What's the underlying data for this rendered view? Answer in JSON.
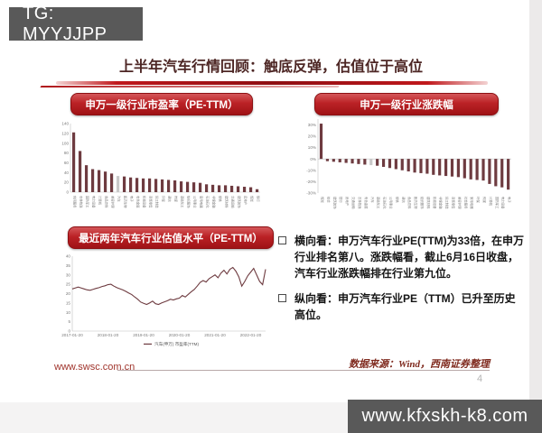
{
  "overlays": {
    "top_left_tag": "TG: MYYJJPP",
    "bottom_right_url": "www.kfxskh-k8.com"
  },
  "slide": {
    "title": "上半年汽车行情回顾：触底反弹，估值位于高位",
    "footer": {
      "website": "www.swsc.com.cn",
      "source": "数据来源：Wind，西南证券整理",
      "page": "4"
    }
  },
  "bullets": [
    {
      "lead": "横向看：",
      "text": "申万汽车行业PE(TTM)为33倍，在申万行业排名第八。涨跌幅看，截止6月16日收盘，汽车行业涨跌幅排在行业第九位。"
    },
    {
      "lead": "纵向看：",
      "text": "申万汽车行业PE（TTM）已升至历史高位。"
    }
  ],
  "colors": {
    "accent_red": "#b0181c",
    "title_color": "#4d2624",
    "bar": "#6e3b40",
    "bar_highlight": "#c9c9c9",
    "line": "#6e3b40",
    "banner_bg": "#595959"
  },
  "chart_data": [
    {
      "type": "bar",
      "title": "申万一级行业市盈率（PE-TTM）",
      "categories": [
        "休闲服务",
        "农林牧渔",
        "国防军工",
        "电力设备",
        "计算机",
        "食品饮料",
        "美容护理",
        "汽车",
        "医药生物",
        "电子",
        "有色金属",
        "机械设备",
        "商贸零售",
        "轻工制造",
        "环保",
        "通信",
        "传媒",
        "基础化工",
        "纺织服饰",
        "公用事业",
        "家用电器",
        "石油石化",
        "非银金融",
        "钢铁",
        "建筑材料",
        "交通运输",
        "建筑装饰",
        "房地产",
        "煤炭",
        "银行"
      ],
      "values": [
        122,
        84,
        55,
        47,
        45,
        42,
        38,
        33,
        32,
        30,
        29,
        28,
        28,
        27,
        26,
        25,
        24,
        22,
        21,
        20,
        19,
        16,
        15,
        14,
        14,
        13,
        12,
        11,
        10,
        6
      ],
      "highlight_category": "汽车",
      "highlight_index": 7,
      "ylim": [
        0,
        140
      ],
      "yticks": [
        140,
        120,
        100,
        80,
        60,
        40,
        20,
        0
      ],
      "tick_suffix": "",
      "grid": false,
      "legend": "none"
    },
    {
      "type": "bar",
      "title": "申万一级行业涨跌幅",
      "categories": [
        "煤炭",
        "综合",
        "建筑装饰",
        "银行",
        "房地产",
        "交通运输",
        "农林牧渔",
        "有色金属",
        "汽车",
        "基础化工",
        "石油石化",
        "公用事业",
        "钢铁",
        "通信",
        "食品饮料",
        "医药生物",
        "纺织服饰",
        "建筑材料",
        "机械设备",
        "非银金融",
        "轻工制造",
        "商贸零售",
        "美容护理",
        "社会服务",
        "家用电器",
        "环保",
        "传媒",
        "计算机",
        "国防军工",
        "电力设备",
        "电子"
      ],
      "values": [
        31,
        -2,
        -2.5,
        -3,
        -3.5,
        -4,
        -4.5,
        -5,
        -5.5,
        -6,
        -7,
        -8,
        -9,
        -10,
        -11,
        -12,
        -12.5,
        -13,
        -14,
        -14.5,
        -15,
        -15.5,
        -16,
        -17,
        -18,
        -18.5,
        -19,
        -22,
        -24,
        -25,
        -27
      ],
      "highlight_category": "汽车",
      "highlight_index": 8,
      "ylim": [
        -30,
        35
      ],
      "yticks": [
        30,
        20,
        10,
        0,
        -10,
        -20,
        -30
      ],
      "tick_suffix": "%",
      "grid": false,
      "legend": "none"
    },
    {
      "type": "line",
      "title": "最近两年汽车行业估值水平（PE-TTM）",
      "series": [
        {
          "name": "汽车(申万) 市盈率(TTM)",
          "values": [
            22.5,
            23,
            23.5,
            23,
            22.5,
            22,
            21.8,
            22.3,
            22.8,
            23.2,
            23.8,
            24.2,
            24.8,
            25,
            24,
            23.2,
            22.6,
            22,
            21.2,
            20.3,
            19.5,
            18.2,
            17,
            15.5,
            14.8,
            14.2,
            15,
            16,
            14.6,
            14.2,
            15,
            15.6,
            16.2,
            17,
            16.6,
            17.2,
            17.6,
            19,
            18.2,
            19.6,
            21,
            22.2,
            24,
            26,
            27,
            26.2,
            28,
            29,
            30,
            28.5,
            31,
            32.5,
            30.5,
            33,
            34,
            32,
            29,
            24,
            26.5,
            29.5,
            31.5,
            33.5,
            30,
            26.5,
            24.8,
            33
          ]
        }
      ],
      "x_tick_labels": [
        "2017-01-20",
        "2018-01-20",
        "2019-01-20",
        "2020-01-20",
        "2021-01-20",
        "2022-01-20"
      ],
      "x_tick_indices": [
        0,
        12,
        24,
        36,
        48,
        60
      ],
      "ylim": [
        0,
        40
      ],
      "yticks": [
        40,
        35,
        30,
        25,
        20,
        15,
        10,
        5,
        0
      ],
      "grid": false,
      "legend_position": "bottom"
    }
  ]
}
